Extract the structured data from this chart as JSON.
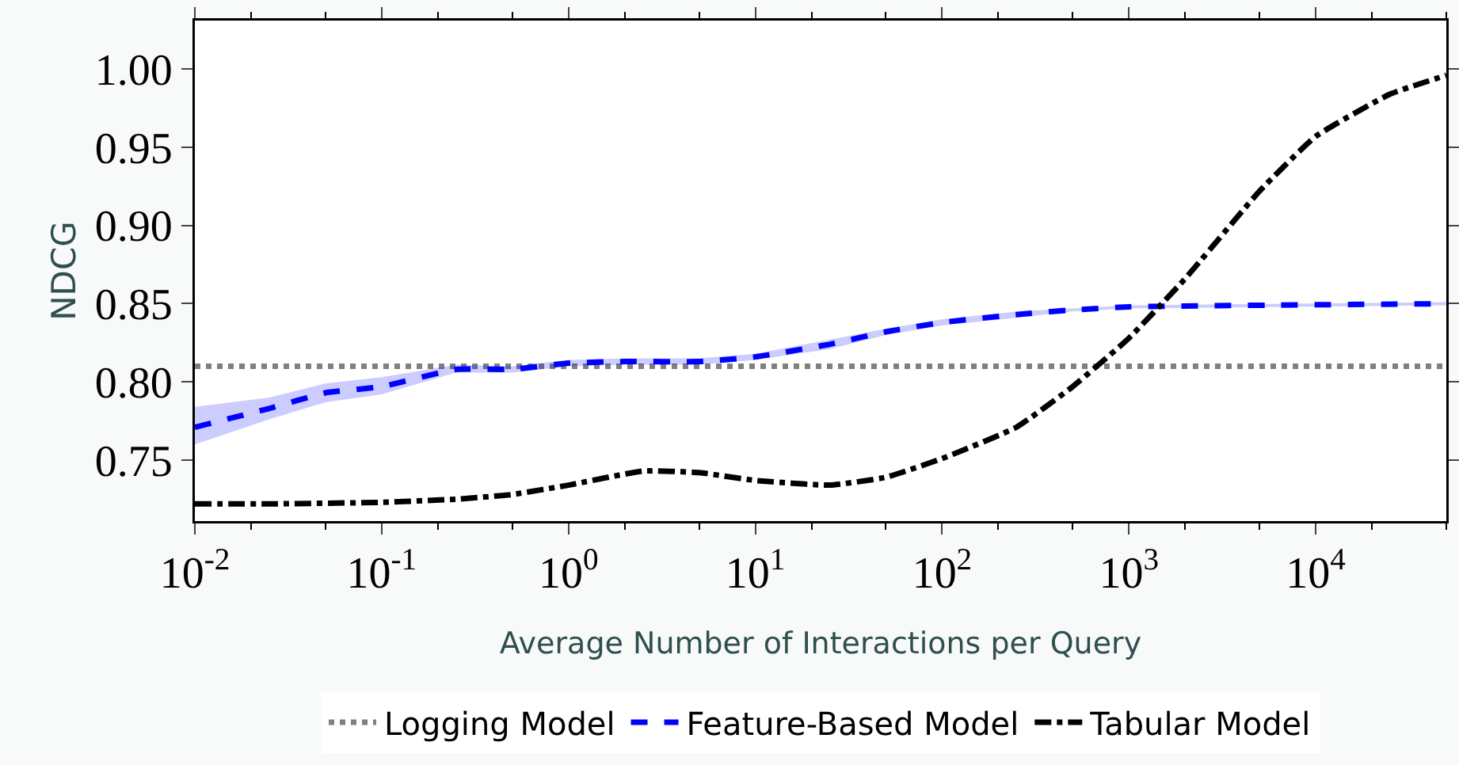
{
  "chart_data": {
    "type": "line",
    "xlabel": "Average Number of Interactions per Query",
    "ylabel": "NDCG",
    "log": "x",
    "xlim": [
      0.01,
      50000
    ],
    "ylim": [
      0.711,
      1.031
    ],
    "xticks": [
      {
        "value": 0.01,
        "label": "10$^{-2}$"
      },
      {
        "value": 0.1,
        "label": "10$^{-1}$"
      },
      {
        "value": 1,
        "label": "10$^{0}$"
      },
      {
        "value": 10,
        "label": "10$^{1}$"
      },
      {
        "value": 100,
        "label": "10$^{2}$"
      },
      {
        "value": 1000,
        "label": "10$^{3}$"
      },
      {
        "value": 10000,
        "label": "10$^{4}$"
      }
    ],
    "yticks": [
      {
        "value": 0.75,
        "label": "0.75"
      },
      {
        "value": 0.8,
        "label": "0.80"
      },
      {
        "value": 0.85,
        "label": "0.85"
      },
      {
        "value": 0.9,
        "label": "0.90"
      },
      {
        "value": 0.95,
        "label": "0.95"
      },
      {
        "value": 1,
        "label": "1.00"
      }
    ],
    "grid": false,
    "legend": "bottom",
    "marker": "none",
    "series": [
      {
        "name": "Logging Model",
        "color": "#808080",
        "line_style": "dotted",
        "x": [
          0.01,
          50000
        ],
        "values": [
          0.81,
          0.81
        ]
      },
      {
        "name": "Feature-Based Model",
        "color": "#0000ff",
        "line_style": "dashed",
        "x": [
          0.01,
          0.025,
          0.05,
          0.1,
          0.25,
          0.5,
          1,
          2,
          5,
          10,
          25,
          50,
          100,
          250,
          500,
          1000,
          50000
        ],
        "values": [
          0.771,
          0.783,
          0.793,
          0.797,
          0.808,
          0.808,
          0.812,
          0.813,
          0.813,
          0.816,
          0.824,
          0.832,
          0.838,
          0.843,
          0.846,
          0.848,
          0.85
        ],
        "lower": [
          0.76,
          0.776,
          0.787,
          0.792,
          0.806,
          0.806,
          0.81,
          0.811,
          0.811,
          0.814,
          0.821,
          0.83,
          0.836,
          0.841,
          0.845,
          0.847,
          0.849
        ],
        "upper": [
          0.784,
          0.79,
          0.799,
          0.803,
          0.811,
          0.81,
          0.814,
          0.815,
          0.815,
          0.818,
          0.827,
          0.834,
          0.84,
          0.845,
          0.847,
          0.849,
          0.851
        ]
      },
      {
        "name": "Tabular Model",
        "color": "#000000",
        "line_style": "dashdot",
        "x": [
          0.01,
          0.025,
          0.1,
          0.25,
          0.5,
          1,
          2.5,
          5,
          10,
          25,
          50,
          100,
          250,
          500,
          1000,
          2000,
          5000,
          10000,
          25000,
          50000
        ],
        "values": [
          0.722,
          0.722,
          0.723,
          0.725,
          0.728,
          0.734,
          0.743,
          0.742,
          0.737,
          0.734,
          0.739,
          0.751,
          0.771,
          0.797,
          0.828,
          0.866,
          0.922,
          0.957,
          0.984,
          0.996
        ]
      }
    ]
  }
}
